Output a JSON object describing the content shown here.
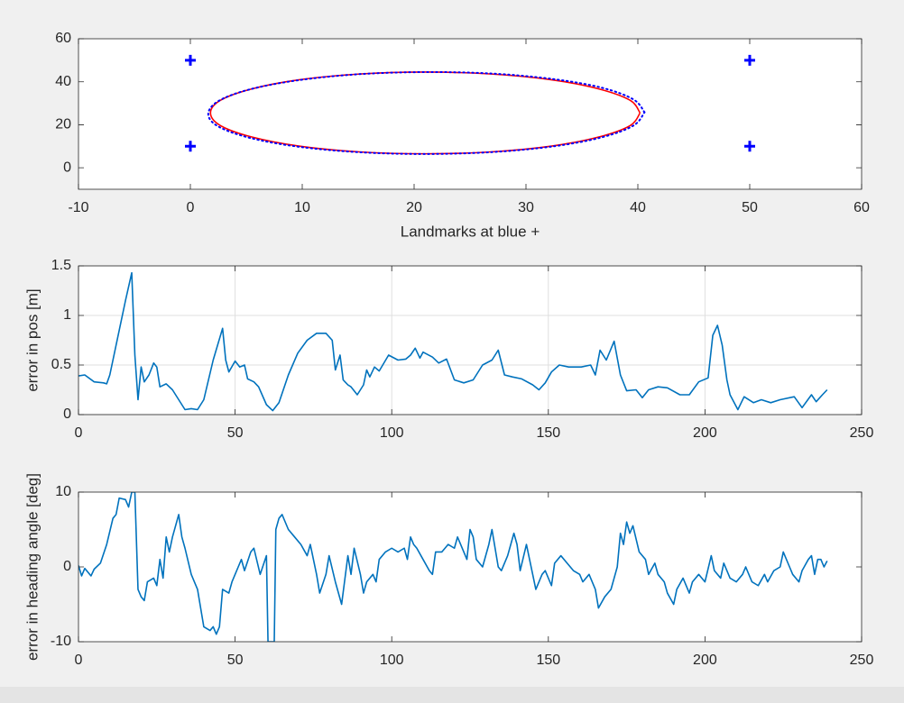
{
  "chart_data": [
    {
      "type": "line",
      "xlabel": "Landmarks at blue +",
      "xlim": [
        -10,
        60
      ],
      "xticks": [
        -10,
        0,
        10,
        20,
        30,
        40,
        50,
        60
      ],
      "ylim": [
        -10,
        60
      ],
      "yticks": [
        0,
        20,
        40,
        60
      ],
      "grid": false,
      "series": [
        {
          "mode": "markers",
          "color": "#0000ff",
          "x": [
            0,
            0,
            50,
            50
          ],
          "values": [
            50,
            10,
            50,
            10
          ]
        },
        {
          "mode": "solid",
          "color": "#ff0000",
          "x": [
            40.2,
            39.3,
            36.5,
            32.3,
            26.9,
            21,
            15.1,
            9.7,
            5.5,
            2.7,
            1.8,
            2.7,
            5.5,
            9.7,
            15.1,
            21,
            26.9,
            32.3,
            36.5,
            39.3,
            40.2
          ],
          "values": [
            25.5,
            31.4,
            36.7,
            40.9,
            43.6,
            44.5,
            43.6,
            40.9,
            36.7,
            31.4,
            25.5,
            19.6,
            14.3,
            10.1,
            7.4,
            6.5,
            7.4,
            10.1,
            14.3,
            19.6,
            25.5
          ]
        },
        {
          "mode": "dotted",
          "color": "#0000ff",
          "x": [
            40.6,
            39.6,
            36.8,
            32.5,
            27,
            21,
            15,
            9.5,
            5.2,
            2.5,
            1.6,
            2.5,
            5.4,
            9.8,
            15.2,
            21,
            27,
            32.5,
            36.8,
            39.6,
            40.6
          ],
          "values": [
            25.8,
            31.8,
            37.2,
            41.2,
            43.8,
            44.5,
            43.5,
            40.6,
            36.3,
            31,
            25,
            19.2,
            13.8,
            9.7,
            7.2,
            6.4,
            7.3,
            10,
            14.2,
            19.6,
            25.8
          ]
        }
      ]
    },
    {
      "type": "line",
      "ylabel": "error in pos [m]",
      "xlim": [
        0,
        250
      ],
      "xticks": [
        0,
        50,
        100,
        150,
        200,
        250
      ],
      "ylim": [
        0,
        1.5
      ],
      "yticks": [
        0,
        0.5,
        1,
        1.5
      ],
      "grid": true,
      "series": [
        {
          "mode": "solid",
          "color": "#0072bd",
          "x": [
            0,
            2,
            5,
            8,
            9,
            10,
            12,
            15,
            17,
            18,
            19,
            20,
            21,
            22.5,
            24,
            25,
            26,
            28,
            30,
            32,
            34,
            36,
            38,
            40,
            43,
            46,
            47,
            48,
            50,
            51.5,
            53,
            54,
            56,
            57.5,
            60,
            62,
            64,
            67,
            70,
            73,
            76,
            79,
            81,
            82,
            83.5,
            84.5,
            86,
            87,
            89,
            91,
            92,
            93,
            94.5,
            96,
            99,
            102,
            104.5,
            106,
            107.5,
            109,
            110,
            113,
            115,
            117.5,
            120,
            123,
            126,
            129,
            132,
            134,
            136,
            138.5,
            141.5,
            145,
            147,
            149,
            151,
            153.5,
            156.5,
            160.5,
            163.5,
            165,
            166.5,
            168.5,
            171,
            173,
            175,
            178,
            180,
            182,
            185,
            188,
            192,
            195,
            198,
            201,
            202.5,
            204,
            205.5,
            207,
            208,
            210.5,
            212.5,
            215.5,
            218,
            221,
            224,
            228.5,
            231,
            234,
            235.5,
            237.5,
            239
          ],
          "values": [
            0.39,
            0.4,
            0.33,
            0.32,
            0.31,
            0.4,
            0.7,
            1.15,
            1.43,
            0.6,
            0.15,
            0.48,
            0.33,
            0.4,
            0.52,
            0.48,
            0.28,
            0.31,
            0.25,
            0.15,
            0.05,
            0.06,
            0.05,
            0.15,
            0.55,
            0.87,
            0.55,
            0.43,
            0.54,
            0.48,
            0.5,
            0.36,
            0.33,
            0.28,
            0.1,
            0.04,
            0.12,
            0.4,
            0.62,
            0.75,
            0.82,
            0.82,
            0.75,
            0.45,
            0.6,
            0.35,
            0.3,
            0.28,
            0.2,
            0.3,
            0.45,
            0.38,
            0.48,
            0.44,
            0.6,
            0.55,
            0.56,
            0.6,
            0.67,
            0.57,
            0.63,
            0.58,
            0.52,
            0.56,
            0.35,
            0.32,
            0.35,
            0.5,
            0.55,
            0.65,
            0.4,
            0.38,
            0.36,
            0.3,
            0.25,
            0.32,
            0.43,
            0.5,
            0.48,
            0.48,
            0.5,
            0.4,
            0.65,
            0.55,
            0.74,
            0.4,
            0.24,
            0.25,
            0.17,
            0.25,
            0.28,
            0.27,
            0.2,
            0.2,
            0.33,
            0.37,
            0.8,
            0.9,
            0.7,
            0.35,
            0.2,
            0.05,
            0.18,
            0.12,
            0.15,
            0.12,
            0.15,
            0.18,
            0.07,
            0.2,
            0.13,
            0.2,
            0.25
          ]
        }
      ]
    },
    {
      "type": "line",
      "ylabel": "error in heading angle [deg]",
      "xlim": [
        0,
        250
      ],
      "xticks": [
        0,
        50,
        100,
        150,
        200,
        250
      ],
      "ylim": [
        -10,
        10
      ],
      "yticks": [
        -10,
        0,
        10
      ],
      "grid": false,
      "series": [
        {
          "mode": "solid",
          "color": "#0072bd",
          "x": [
            0,
            1,
            2,
            4,
            5,
            7,
            9,
            11,
            12,
            13,
            15,
            16,
            17,
            18,
            19,
            20,
            21,
            22,
            24,
            25,
            26,
            27,
            28,
            29,
            30,
            32,
            33,
            34,
            36,
            38,
            40,
            42,
            43,
            44,
            45,
            46,
            48,
            49,
            51,
            52,
            53,
            55,
            56,
            58,
            60,
            60.5,
            62.5,
            63,
            64,
            65,
            67,
            69,
            71,
            73,
            74,
            76,
            77,
            79,
            80,
            82,
            84,
            86,
            87,
            88,
            90,
            91,
            92,
            94,
            95,
            96,
            98,
            100,
            102,
            104,
            105,
            106,
            107,
            108,
            110,
            112,
            113,
            114,
            116,
            118,
            120,
            121,
            122,
            124,
            125,
            126,
            127,
            129,
            131,
            132,
            134,
            135,
            137,
            139,
            140,
            141,
            143,
            145,
            146,
            148,
            149,
            151,
            152,
            154,
            156,
            158,
            160,
            161,
            163,
            165,
            166,
            168,
            170,
            172,
            173,
            174,
            175,
            176,
            177,
            179,
            181,
            182,
            184,
            185,
            187,
            188,
            190,
            191,
            193,
            195,
            196,
            198,
            200,
            202,
            203,
            205,
            206,
            208,
            210,
            212,
            213,
            215,
            217,
            219,
            220,
            222,
            224,
            225,
            227,
            228,
            230,
            231,
            233,
            234,
            235,
            236,
            237,
            238,
            239
          ],
          "values": [
            0.2,
            -1.2,
            -0.2,
            -1.2,
            -0.3,
            0.5,
            3,
            6.5,
            7,
            9.2,
            9,
            8,
            10,
            10,
            -3,
            -4,
            -4.5,
            -2,
            -1.5,
            -2.5,
            1,
            -1.5,
            4,
            2,
            4,
            7,
            4,
            2.5,
            -1,
            -3,
            -8,
            -8.5,
            -8,
            -9,
            -8,
            -3,
            -3.5,
            -2,
            0,
            1,
            -0.5,
            2,
            2.5,
            -1,
            1.5,
            -10,
            -10,
            5,
            6.5,
            7,
            5,
            4,
            3,
            1.5,
            3,
            -1,
            -3.5,
            -1,
            1.5,
            -2,
            -5,
            1.5,
            -1,
            2.5,
            -1,
            -3.5,
            -2,
            -1,
            -2,
            1,
            2,
            2.5,
            2,
            2.5,
            1,
            4,
            3,
            2.5,
            1,
            -0.5,
            -1,
            2,
            2,
            3,
            2.5,
            4,
            3,
            1,
            5,
            4,
            1,
            0,
            3,
            5,
            0,
            -0.5,
            1.5,
            4.5,
            3,
            -0.5,
            3,
            -1,
            -3,
            -1,
            -0.5,
            -2.5,
            0.5,
            1.5,
            0.5,
            -0.5,
            -1,
            -2,
            -1,
            -3,
            -5.5,
            -4,
            -3,
            0,
            4.5,
            3,
            6,
            4.5,
            5.5,
            2,
            1,
            -1,
            0.5,
            -1,
            -2,
            -3.5,
            -5,
            -3,
            -1.5,
            -3.5,
            -2,
            -1,
            -2,
            1.5,
            -0.5,
            -1.5,
            0.5,
            -1.5,
            -2,
            -1,
            0,
            -2,
            -2.5,
            -1,
            -2,
            -0.5,
            0,
            2,
            0,
            -1,
            -2,
            -0.5,
            1,
            1.5,
            -1,
            1,
            1,
            0,
            0.8
          ]
        }
      ]
    }
  ]
}
